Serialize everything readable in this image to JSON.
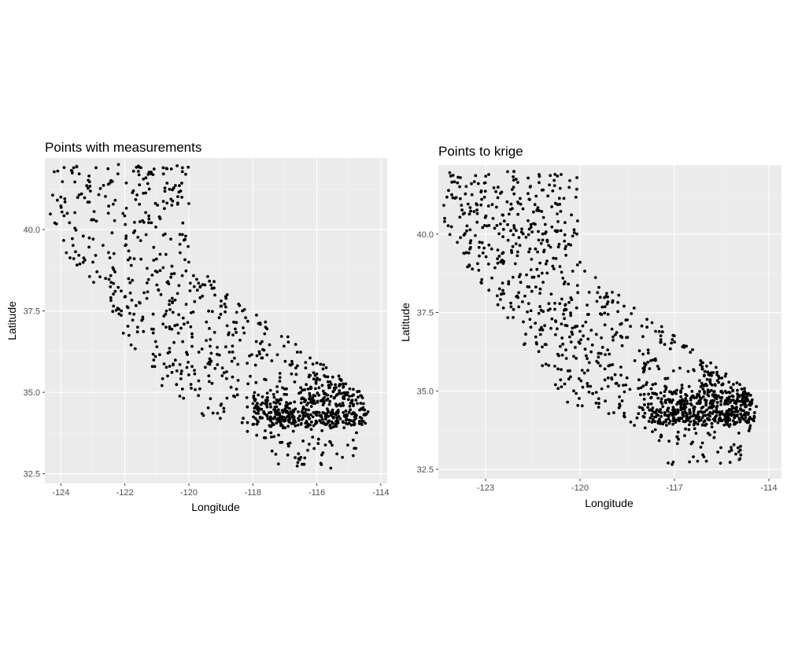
{
  "colors": {
    "panel_background": "#ebebeb",
    "major_grid": "#ffffff",
    "minor_grid": "#f5f5f5",
    "point": "#000000",
    "tick_label": "#4d4d4d"
  },
  "chart_data": [
    {
      "type": "scatter",
      "title": "Points with measurements",
      "xlabel": "Longitude",
      "ylabel": "Latitude",
      "xlim": [
        -124.5,
        -113.8
      ],
      "ylim": [
        32.2,
        42.2
      ],
      "xticks": [
        -124,
        -122,
        -120,
        -118,
        -116,
        -114
      ],
      "xtick_labels": [
        "-124",
        "-122",
        "-120",
        "-118",
        "-116",
        "-114"
      ],
      "yticks": [
        32.5,
        35.0,
        37.5,
        40.0
      ],
      "ytick_labels": [
        "32.5",
        "35.0",
        "37.5",
        "40.0"
      ],
      "grid": true,
      "legend": "none",
      "seed": 11,
      "point_count_main": 620,
      "point_count_cluster": 430,
      "series": [
        {
          "marker": "circle",
          "points": [
            [
              -124.1,
              41.8
            ],
            [
              -123.6,
              41.9
            ],
            [
              -122.9,
              41.9
            ],
            [
              -122.2,
              42.0
            ],
            [
              -121.5,
              41.9
            ],
            [
              -120.8,
              41.9
            ],
            [
              -120.2,
              41.9
            ],
            [
              -124.0,
              41.0
            ],
            [
              -123.8,
              40.5
            ],
            [
              -123.3,
              39.8
            ],
            [
              -123.0,
              39.0
            ],
            [
              -122.6,
              38.5
            ],
            [
              -122.3,
              38.1
            ],
            [
              -121.9,
              37.6
            ],
            [
              -121.6,
              37.0
            ],
            [
              -121.0,
              36.4
            ],
            [
              -120.6,
              35.8
            ],
            [
              -120.2,
              35.1
            ],
            [
              -119.7,
              34.9
            ],
            [
              -119.0,
              34.6
            ],
            [
              -118.3,
              34.2
            ],
            [
              -117.6,
              33.6
            ],
            [
              -117.2,
              32.8
            ],
            [
              -116.5,
              33.0
            ],
            [
              -115.2,
              33.0
            ],
            [
              -114.6,
              34.2
            ],
            [
              -114.4,
              34.4
            ],
            [
              -115.3,
              35.2
            ],
            [
              -116.0,
              35.9
            ],
            [
              -117.6,
              37.0
            ],
            [
              -118.8,
              38.0
            ],
            [
              -119.5,
              38.3
            ],
            [
              -120.0,
              39.0
            ],
            [
              -120.1,
              39.8
            ],
            [
              -120.0,
              40.8
            ],
            [
              -120.1,
              41.7
            ],
            [
              -122.4,
              39.9
            ],
            [
              -121.8,
              38.9
            ],
            [
              -121.0,
              38.3
            ],
            [
              -120.7,
              37.5
            ],
            [
              -119.9,
              36.8
            ],
            [
              -119.3,
              36.2
            ],
            [
              -118.9,
              35.6
            ],
            [
              -118.4,
              36.6
            ],
            [
              -117.9,
              35.3
            ],
            [
              -117.0,
              35.1
            ],
            [
              -116.4,
              34.8
            ],
            [
              -117.3,
              34.4
            ]
          ]
        }
      ]
    },
    {
      "type": "scatter",
      "title": "Points to krige",
      "xlabel": "Longitude",
      "ylabel": "Latitude",
      "xlim": [
        -124.5,
        -113.6
      ],
      "ylim": [
        32.2,
        42.2
      ],
      "xticks": [
        -123,
        -120,
        -117,
        -114
      ],
      "xtick_labels": [
        "-123",
        "-120",
        "-117",
        "-114"
      ],
      "yticks": [
        32.5,
        35.0,
        37.5,
        40.0
      ],
      "ytick_labels": [
        "32.5",
        "35.0",
        "37.5",
        "40.0"
      ],
      "grid": true,
      "legend": "none",
      "seed": 29,
      "point_count_main": 720,
      "point_count_cluster": 480,
      "series": [
        {
          "marker": "circle",
          "points": [
            [
              -124.3,
              40.5
            ],
            [
              -123.8,
              41.8
            ],
            [
              -122.9,
              41.9
            ],
            [
              -122.1,
              42.0
            ],
            [
              -121.3,
              41.9
            ],
            [
              -120.6,
              41.9
            ],
            [
              -123.6,
              40.1
            ],
            [
              -123.2,
              39.3
            ],
            [
              -122.8,
              38.6
            ],
            [
              -122.2,
              37.8
            ],
            [
              -121.8,
              37.2
            ],
            [
              -121.2,
              36.4
            ],
            [
              -120.7,
              35.7
            ],
            [
              -120.2,
              35.0
            ],
            [
              -119.4,
              34.6
            ],
            [
              -118.6,
              34.2
            ],
            [
              -117.7,
              33.7
            ],
            [
              -117.2,
              32.7
            ],
            [
              -116.4,
              32.9
            ],
            [
              -115.2,
              33.2
            ],
            [
              -114.5,
              34.1
            ],
            [
              -114.4,
              34.5
            ],
            [
              -115.2,
              35.1
            ],
            [
              -116.1,
              35.9
            ],
            [
              -117.6,
              36.9
            ],
            [
              -118.6,
              37.7
            ],
            [
              -119.4,
              38.3
            ],
            [
              -120.0,
              39.1
            ],
            [
              -120.1,
              40.0
            ],
            [
              -120.1,
              41.8
            ],
            [
              -122.3,
              40.3
            ],
            [
              -121.7,
              38.7
            ],
            [
              -120.8,
              37.6
            ],
            [
              -120.0,
              36.9
            ],
            [
              -119.4,
              36.2
            ],
            [
              -118.7,
              35.5
            ],
            [
              -117.9,
              35.2
            ],
            [
              -116.8,
              35.0
            ],
            [
              -116.2,
              34.6
            ],
            [
              -117.3,
              34.3
            ]
          ]
        }
      ]
    }
  ]
}
